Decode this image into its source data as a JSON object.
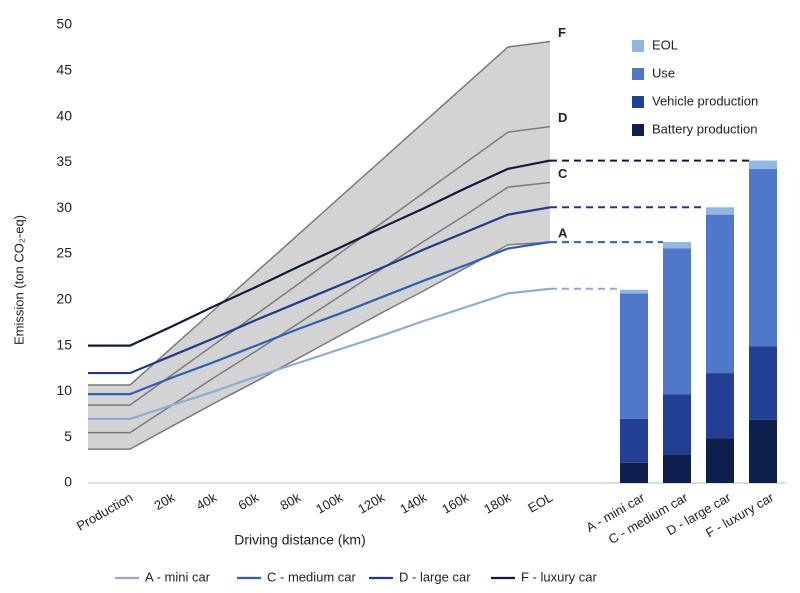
{
  "chart_data": [
    {
      "type": "line",
      "xlabel": "Driving distance (km)",
      "ylabel": "Emission (ton CO₂-eq)",
      "categories": [
        null,
        "Production",
        "20k",
        "40k",
        "60k",
        "80k",
        "100k",
        "120k",
        "140k",
        "160k",
        "180k",
        "EOL"
      ],
      "ylim": [
        0,
        50
      ],
      "yticks": [
        0,
        5,
        10,
        15,
        20,
        25,
        30,
        35,
        40,
        45,
        50
      ],
      "legend": "bottom",
      "connectors": "dashed",
      "band_color": "#d3d3d3",
      "bounds_color": "#7a7a7a",
      "bounds": [
        {
          "name": "F",
          "values": [
            10.7,
            10.7,
            14.8,
            18.9,
            23.0,
            27.1,
            31.2,
            35.3,
            39.4,
            43.5,
            47.6,
            48.2
          ]
        },
        {
          "name": "D",
          "values": [
            8.5,
            8.5,
            11.8,
            15.1,
            18.4,
            21.7,
            25.1,
            28.4,
            31.7,
            35.0,
            38.3,
            38.9
          ]
        },
        {
          "name": "C",
          "values": [
            5.5,
            5.5,
            8.5,
            11.5,
            14.4,
            17.4,
            20.4,
            23.4,
            26.4,
            29.3,
            32.3,
            32.8
          ]
        },
        {
          "name": "A",
          "values": [
            3.7,
            3.7,
            6.2,
            8.7,
            11.1,
            13.6,
            16.1,
            18.6,
            21.0,
            23.5,
            26.0,
            26.3
          ]
        }
      ],
      "series": [
        {
          "name": "A - mini car",
          "color": "#8eaadb",
          "values": [
            7,
            7,
            8.5,
            10.0,
            11.6,
            13.1,
            14.6,
            16.1,
            17.7,
            19.2,
            20.7,
            21.2
          ]
        },
        {
          "name": "C - medium car",
          "color": "#2f5fb3",
          "values": [
            9.7,
            9.7,
            11.5,
            13.2,
            15.0,
            16.8,
            18.5,
            20.3,
            22.1,
            23.8,
            25.6,
            26.3
          ]
        },
        {
          "name": "D - large car",
          "color": "#1f3c8c",
          "values": [
            12,
            12,
            13.9,
            15.8,
            17.8,
            19.7,
            21.6,
            23.5,
            25.5,
            27.4,
            29.3,
            30.1
          ]
        },
        {
          "name": "F - luxury car",
          "color": "#0d1b3d",
          "values": [
            15,
            15,
            17.1,
            19.3,
            21.4,
            23.6,
            25.7,
            27.9,
            30.0,
            32.2,
            34.3,
            35.2
          ]
        }
      ]
    },
    {
      "type": "bar",
      "stacked": true,
      "legend": "top right",
      "categories": [
        "A - mini car",
        "C - medium car",
        "D - large car",
        "F - luxury car"
      ],
      "ylim": [
        0,
        50
      ],
      "series": [
        {
          "name": "Battery production",
          "color": "#0f1f4d",
          "values": [
            2.2,
            3.1,
            4.9,
            6.9
          ]
        },
        {
          "name": "Vehicle production",
          "color": "#213f93",
          "values": [
            4.8,
            6.6,
            7.1,
            8.0
          ]
        },
        {
          "name": "Use",
          "color": "#5078c8",
          "values": [
            13.7,
            15.9,
            17.3,
            19.4
          ]
        },
        {
          "name": "EOL",
          "color": "#8fb7e3",
          "values": [
            0.4,
            0.7,
            0.8,
            0.9
          ]
        }
      ]
    }
  ]
}
